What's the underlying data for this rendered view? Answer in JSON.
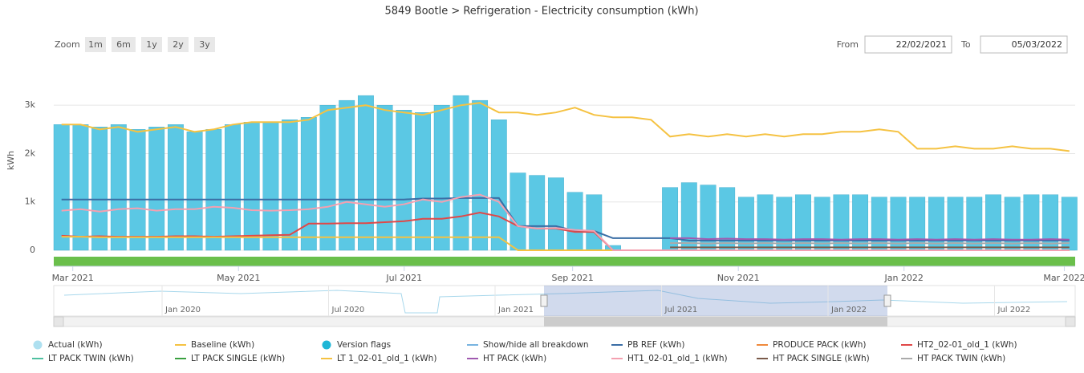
{
  "chart_data": {
    "type": "bar",
    "title": "5849 Bootle > Refrigeration - Electricity consumption (kWh)",
    "y_label": "kWh",
    "zoom_label": "Zoom",
    "zoom_buttons": [
      "1m",
      "6m",
      "1y",
      "2y",
      "3y"
    ],
    "from_label": "From",
    "from_value": "22/02/2021",
    "to_label": "To",
    "to_value": "05/03/2022",
    "xlim": [
      "2021-02-22",
      "2022-03-05"
    ],
    "xticks": [
      {
        "value": "2021-03-01",
        "label": "Mar 2021"
      },
      {
        "value": "2021-05-01",
        "label": "May 2021"
      },
      {
        "value": "2021-07-01",
        "label": "Jul 2021"
      },
      {
        "value": "2021-09-01",
        "label": "Sep 2021"
      },
      {
        "value": "2021-11-01",
        "label": "Nov 2021"
      },
      {
        "value": "2022-01-01",
        "label": "Jan 2022"
      },
      {
        "value": "2022-03-01",
        "label": "Mar 2022"
      }
    ],
    "ylim": [
      0,
      3600
    ],
    "yticks": [
      0,
      {
        "value": 1000,
        "label": "1k"
      },
      {
        "value": 2000,
        "label": "2k"
      },
      {
        "value": 3000,
        "label": "3k"
      }
    ],
    "navigator_ticks": [
      "Jan 2020",
      "Jul 2020",
      "Jan 2021",
      "Jul 2021",
      "Jan 2022",
      "Jul 2022"
    ],
    "x": [
      "2021-02-22",
      "2021-03-01",
      "2021-03-08",
      "2021-03-15",
      "2021-03-22",
      "2021-03-29",
      "2021-04-05",
      "2021-04-12",
      "2021-04-19",
      "2021-04-26",
      "2021-05-03",
      "2021-05-10",
      "2021-05-17",
      "2021-05-24",
      "2021-05-31",
      "2021-06-07",
      "2021-06-14",
      "2021-06-21",
      "2021-06-28",
      "2021-07-05",
      "2021-07-12",
      "2021-07-19",
      "2021-07-26",
      "2021-08-02",
      "2021-08-09",
      "2021-08-16",
      "2021-08-23",
      "2021-08-30",
      "2021-09-06",
      "2021-09-13",
      "2021-09-20",
      "2021-09-27",
      "2021-10-04",
      "2021-10-11",
      "2021-10-18",
      "2021-10-25",
      "2021-11-01",
      "2021-11-08",
      "2021-11-15",
      "2021-11-22",
      "2021-11-29",
      "2021-12-06",
      "2021-12-13",
      "2021-12-20",
      "2021-12-27",
      "2022-01-03",
      "2022-01-10",
      "2022-01-17",
      "2022-01-24",
      "2022-01-31",
      "2022-02-07",
      "2022-02-14",
      "2022-02-21",
      "2022-02-28"
    ],
    "series": [
      {
        "name": "Actual (kWh)",
        "color": "#5bc8e4",
        "legend_color": "#aee0f0",
        "symbol": "dot",
        "kind": "bar",
        "values": [
          2600,
          2600,
          2550,
          2600,
          2500,
          2550,
          2600,
          2450,
          2500,
          2600,
          2650,
          2650,
          2700,
          2750,
          3000,
          3100,
          3200,
          3000,
          2900,
          2850,
          3000,
          3200,
          3100,
          2700,
          1600,
          1550,
          1500,
          1200,
          1150,
          100,
          0,
          0,
          1300,
          1400,
          1350,
          1300,
          1100,
          1150,
          1100,
          1150,
          1100,
          1150,
          1150,
          1100,
          1100,
          1100,
          1100,
          1100,
          1100,
          1150,
          1100,
          1150,
          1150,
          1100
        ]
      },
      {
        "name": "Baseline (kWh)",
        "color": "#f5c242",
        "symbol": "line",
        "kind": "line",
        "values": [
          2600,
          2600,
          2500,
          2550,
          2450,
          2500,
          2550,
          2450,
          2500,
          2600,
          2650,
          2650,
          2650,
          2700,
          2900,
          2950,
          3000,
          2900,
          2850,
          2800,
          2900,
          3000,
          3050,
          2850,
          2850,
          2800,
          2850,
          2950,
          2800,
          2750,
          2750,
          2700,
          2350,
          2400,
          2350,
          2400,
          2350,
          2400,
          2350,
          2400,
          2400,
          2450,
          2450,
          2500,
          2450,
          2100,
          2100,
          2150,
          2100,
          2100,
          2150,
          2100,
          2100,
          2050
        ]
      },
      {
        "name": "Version flags",
        "color": "#1fb6d6",
        "symbol": "dot"
      },
      {
        "name": "Show/hide all breakdown",
        "color": "#78b4e0",
        "symbol": "line"
      },
      {
        "name": "PB REF (kWh)",
        "color": "#3a6ea5",
        "symbol": "line",
        "kind": "line",
        "values": [
          1050,
          1050,
          1050,
          1050,
          1050,
          1050,
          1050,
          1050,
          1050,
          1050,
          1050,
          1050,
          1050,
          1050,
          1050,
          1050,
          1050,
          1050,
          1050,
          1070,
          1070,
          1080,
          1080,
          1080,
          500,
          500,
          500,
          400,
          400,
          250,
          250,
          250,
          250,
          200,
          200,
          200,
          200,
          200,
          200,
          200,
          200,
          200,
          200,
          200,
          200,
          200,
          200,
          200,
          200,
          200,
          200,
          200,
          200,
          200
        ]
      },
      {
        "name": "PRODUCE PACK (kWh)",
        "color": "#f08a3c",
        "symbol": "line"
      },
      {
        "name": "HT2_02-01_old_1 (kWh)",
        "color": "#e04848",
        "symbol": "line",
        "kind": "line",
        "values": [
          300,
          280,
          290,
          280,
          280,
          280,
          290,
          290,
          280,
          290,
          300,
          310,
          320,
          550,
          550,
          560,
          560,
          580,
          600,
          650,
          650,
          700,
          780,
          700,
          500,
          450,
          450,
          380,
          380,
          0,
          0,
          0,
          0,
          0,
          0,
          0,
          0,
          0,
          0,
          0,
          0,
          0,
          0,
          0,
          0,
          0,
          0,
          0,
          0,
          0,
          0,
          0,
          0,
          0
        ]
      },
      {
        "name": "LT PACK TWIN (kWh)",
        "color": "#4fc0a0",
        "symbol": "line"
      },
      {
        "name": "LT PACK SINGLE (kWh)",
        "color": "#3aa040",
        "symbol": "line"
      },
      {
        "name": "LT 1_02-01_old_1 (kWh)",
        "color": "#f5c242",
        "symbol": "line",
        "kind": "line",
        "values": [
          280,
          280,
          270,
          270,
          270,
          270,
          270,
          270,
          270,
          270,
          270,
          270,
          270,
          270,
          270,
          270,
          270,
          270,
          270,
          270,
          270,
          270,
          270,
          270,
          0,
          0,
          0,
          0,
          0,
          0,
          0,
          0,
          0,
          0,
          0,
          0,
          0,
          0,
          0,
          0,
          0,
          0,
          0,
          0,
          0,
          0,
          0,
          0,
          0,
          0,
          0,
          0,
          0,
          0
        ]
      },
      {
        "name": "HT PACK (kWh)",
        "color": "#a05ab0",
        "symbol": "line",
        "kind": "line",
        "values": [
          null,
          null,
          null,
          null,
          null,
          null,
          null,
          null,
          null,
          null,
          null,
          null,
          null,
          null,
          null,
          null,
          null,
          null,
          null,
          null,
          null,
          null,
          null,
          null,
          null,
          null,
          null,
          null,
          null,
          null,
          null,
          null,
          250,
          250,
          230,
          240,
          230,
          230,
          220,
          230,
          230,
          220,
          230,
          230,
          220,
          230,
          220,
          230,
          220,
          230,
          220,
          220,
          230,
          220
        ]
      },
      {
        "name": "HT1_02-01_old_1 (kWh)",
        "color": "#f4a0b0",
        "symbol": "line",
        "kind": "line",
        "values": [
          820,
          850,
          800,
          850,
          870,
          820,
          850,
          850,
          900,
          880,
          830,
          820,
          830,
          850,
          900,
          1000,
          950,
          900,
          950,
          1050,
          1000,
          1100,
          1150,
          1000,
          500,
          450,
          460,
          420,
          400,
          0,
          0,
          0,
          0,
          0,
          0,
          0,
          0,
          0,
          0,
          0,
          0,
          0,
          0,
          0,
          0,
          0,
          0,
          0,
          0,
          0,
          0,
          0,
          0,
          0
        ]
      },
      {
        "name": "HT PACK SINGLE (kWh)",
        "color": "#7a5a4a",
        "symbol": "line",
        "kind": "line",
        "values": [
          null,
          null,
          null,
          null,
          null,
          null,
          null,
          null,
          null,
          null,
          null,
          null,
          null,
          null,
          null,
          null,
          null,
          null,
          null,
          null,
          null,
          null,
          null,
          null,
          null,
          null,
          null,
          null,
          null,
          null,
          null,
          null,
          60,
          60,
          60,
          60,
          60,
          60,
          60,
          60,
          60,
          60,
          60,
          60,
          60,
          60,
          60,
          60,
          60,
          60,
          60,
          60,
          60,
          60
        ]
      },
      {
        "name": "HT PACK TWIN (kWh)",
        "color": "#aaaaaa",
        "symbol": "line",
        "kind": "line",
        "values": [
          null,
          null,
          null,
          null,
          null,
          null,
          null,
          null,
          null,
          null,
          null,
          null,
          null,
          null,
          null,
          null,
          null,
          null,
          null,
          null,
          null,
          null,
          null,
          null,
          null,
          null,
          null,
          null,
          null,
          null,
          null,
          null,
          150,
          150,
          140,
          150,
          140,
          150,
          140,
          150,
          140,
          150,
          140,
          150,
          140,
          150,
          140,
          150,
          140,
          150,
          140,
          150,
          140,
          150
        ]
      }
    ]
  }
}
